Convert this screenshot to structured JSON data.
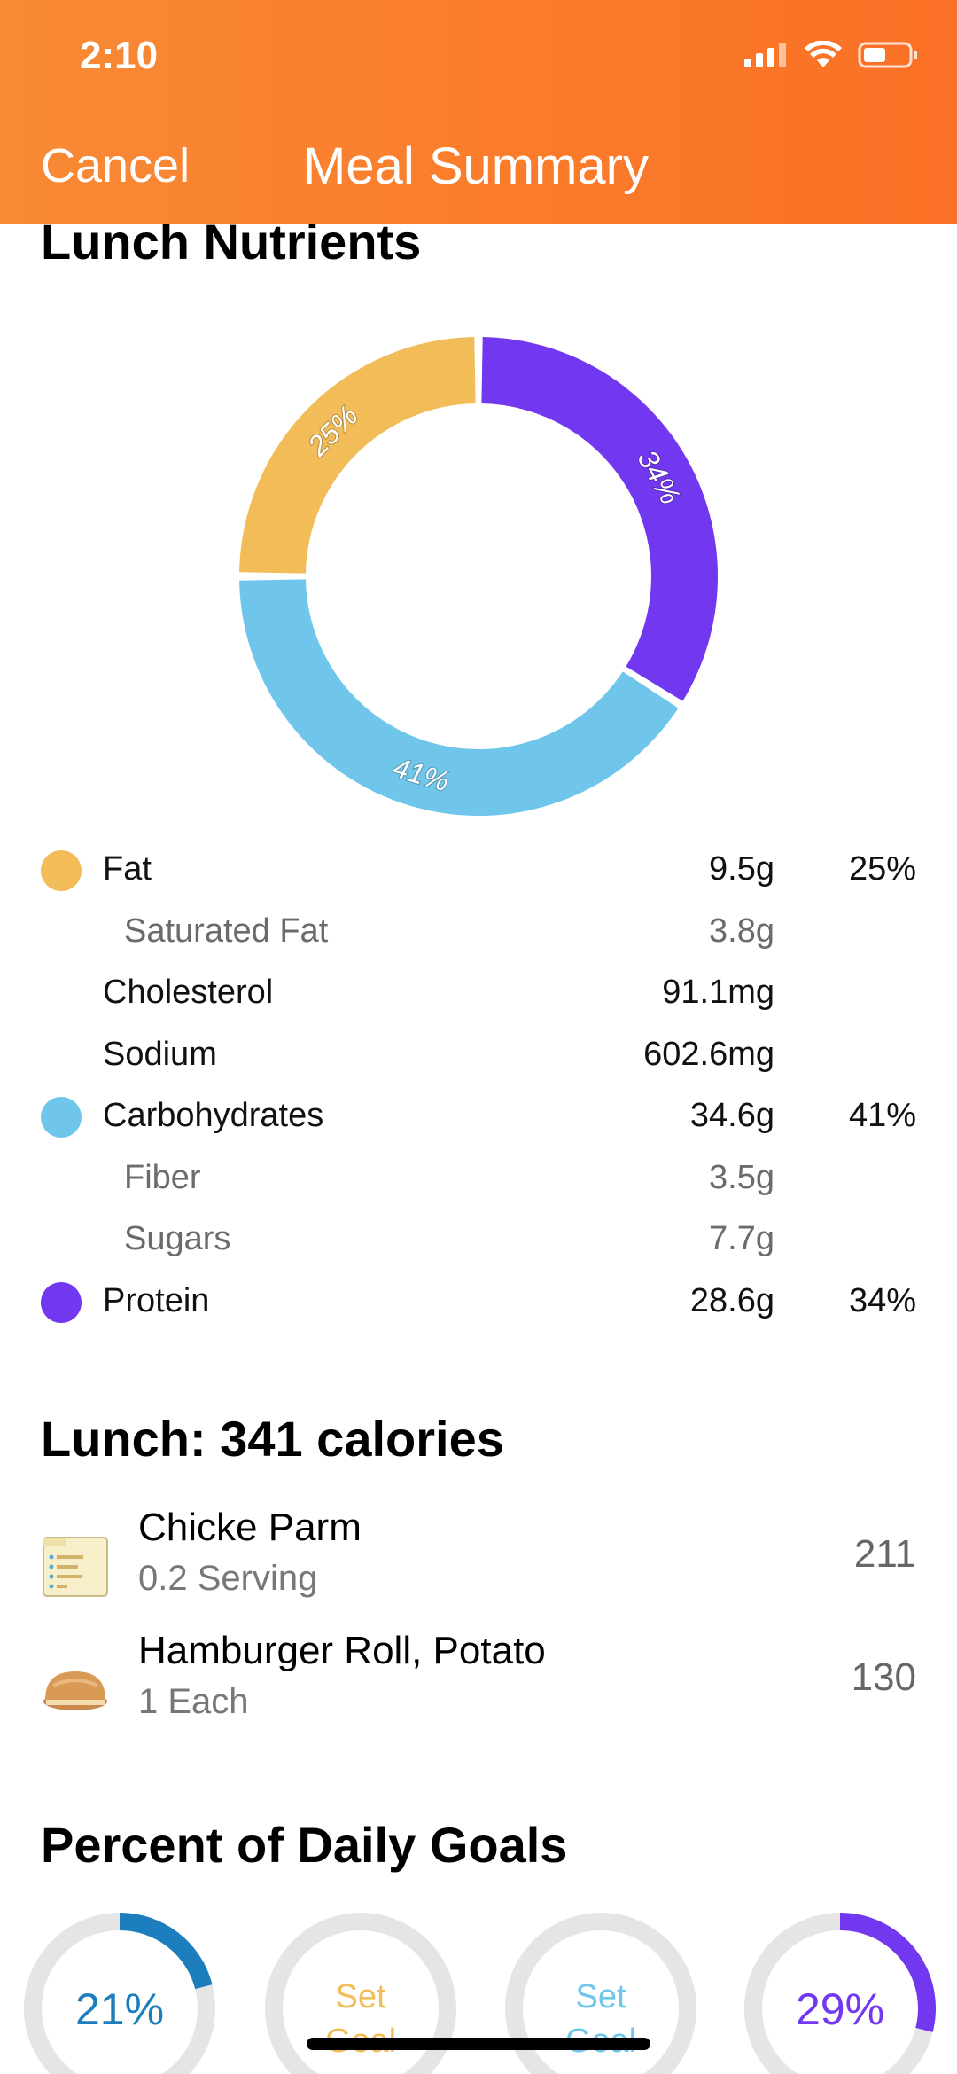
{
  "status_bar": {
    "time": "2:10"
  },
  "nav": {
    "cancel_label": "Cancel",
    "title": "Meal Summary"
  },
  "colors": {
    "fat": "#f2bd58",
    "carbs": "#6fc6ea",
    "protein": "#7138f0",
    "header": "#fa7a2a",
    "blue_goal": "#1c7ebd"
  },
  "nutrients_section": {
    "title": "Lunch Nutrients",
    "chart_data": {
      "type": "pie",
      "categories": [
        "Fat",
        "Carbohydrates",
        "Protein"
      ],
      "values": [
        25,
        41,
        34
      ],
      "labels": [
        "25%",
        "41%",
        "34%"
      ]
    },
    "rows": [
      {
        "name": "Fat",
        "value": "9.5g",
        "percent": "25%",
        "dot": "fat",
        "sub": false
      },
      {
        "name": "Saturated Fat",
        "value": "3.8g",
        "percent": "",
        "dot": "",
        "sub": true
      },
      {
        "name": "Cholesterol",
        "value": "91.1mg",
        "percent": "",
        "dot": "",
        "sub": false
      },
      {
        "name": "Sodium",
        "value": "602.6mg",
        "percent": "",
        "dot": "",
        "sub": false
      },
      {
        "name": "Carbohydrates",
        "value": "34.6g",
        "percent": "41%",
        "dot": "carbs",
        "sub": false
      },
      {
        "name": "Fiber",
        "value": "3.5g",
        "percent": "",
        "dot": "",
        "sub": true
      },
      {
        "name": "Sugars",
        "value": "7.7g",
        "percent": "",
        "dot": "",
        "sub": true
      },
      {
        "name": "Protein",
        "value": "28.6g",
        "percent": "34%",
        "dot": "protein",
        "sub": false
      }
    ]
  },
  "lunch": {
    "title": "Lunch: 341 calories",
    "items": [
      {
        "name": "Chicke Parm",
        "serving": "0.2 Serving",
        "calories": "211",
        "icon": "recipe-card-icon"
      },
      {
        "name": "Hamburger Roll, Potato",
        "serving": "1 Each",
        "calories": "130",
        "icon": "bread-roll-icon"
      }
    ]
  },
  "daily_goals": {
    "title": "Percent of Daily Goals",
    "goals": [
      {
        "label": "21%",
        "set_goal": false,
        "fraction": 0.21,
        "color": "#1c7ebd"
      },
      {
        "label": "Set Goal",
        "set_goal": true,
        "fraction": 0,
        "color": "#f2bd58"
      },
      {
        "label": "Set Goal",
        "set_goal": true,
        "fraction": 0,
        "color": "#6fc6ea"
      },
      {
        "label": "29%",
        "set_goal": false,
        "fraction": 0.29,
        "color": "#7138f0"
      }
    ]
  }
}
